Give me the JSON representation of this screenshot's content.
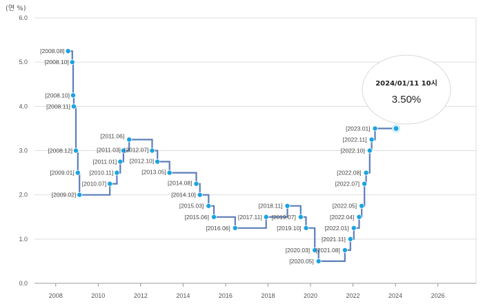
{
  "chart_data": {
    "type": "line",
    "step": "after",
    "unit_label": "(연 %)",
    "xlim": [
      2007,
      2027.8
    ],
    "ylim": [
      0.0,
      6.0
    ],
    "y_ticks": [
      "0.0",
      "1.0",
      "2.0",
      "3.0",
      "4.0",
      "5.0",
      "6.0"
    ],
    "x_ticks": [
      "2008",
      "2010",
      "2012",
      "2014",
      "2016",
      "2018",
      "2020",
      "2022",
      "2024",
      "2026"
    ],
    "grid": true,
    "colors": {
      "line": "#5b7db8",
      "point": "#1aa3e0",
      "grid": "#dddddd",
      "axis": "#999999"
    },
    "series": [
      {
        "values": [
          {
            "x": 2008.58,
            "y": 5.25,
            "label": "[2008.08]"
          },
          {
            "x": 2008.78,
            "y": 5.0,
            "label": "[2008.10]"
          },
          {
            "x": 2008.82,
            "y": 4.25,
            "label": "[2008.10]"
          },
          {
            "x": 2008.85,
            "y": 4.0,
            "label": "[2008.11]"
          },
          {
            "x": 2008.95,
            "y": 3.0,
            "label": "[2008.12]"
          },
          {
            "x": 2009.04,
            "y": 2.5,
            "label": "[2009.01]"
          },
          {
            "x": 2009.12,
            "y": 2.0,
            "label": "[2009.02]"
          },
          {
            "x": 2010.55,
            "y": 2.25,
            "label": "[2010.07]"
          },
          {
            "x": 2010.88,
            "y": 2.5,
            "label": "[2010.11]"
          },
          {
            "x": 2011.04,
            "y": 2.75,
            "label": "[2011.01]"
          },
          {
            "x": 2011.19,
            "y": 3.0,
            "label": "[2011.03]"
          },
          {
            "x": 2011.46,
            "y": 3.25,
            "label": "[2011.06]"
          },
          {
            "x": 2012.54,
            "y": 3.0,
            "label": "[2012.07]"
          },
          {
            "x": 2012.79,
            "y": 2.75,
            "label": "[2012.10]"
          },
          {
            "x": 2013.36,
            "y": 2.5,
            "label": "[2013.05]"
          },
          {
            "x": 2014.62,
            "y": 2.25,
            "label": "[2014.08]"
          },
          {
            "x": 2014.79,
            "y": 2.0,
            "label": "[2014.10]"
          },
          {
            "x": 2015.2,
            "y": 1.75,
            "label": "[2015.03]"
          },
          {
            "x": 2015.45,
            "y": 1.5,
            "label": "[2015.06]"
          },
          {
            "x": 2016.45,
            "y": 1.25,
            "label": "[2016.06]"
          },
          {
            "x": 2017.91,
            "y": 1.5,
            "label": "[2017.11]"
          },
          {
            "x": 2018.91,
            "y": 1.75,
            "label": "[2018.11]"
          },
          {
            "x": 2019.54,
            "y": 1.5,
            "label": "[2019.07]"
          },
          {
            "x": 2019.79,
            "y": 1.25,
            "label": "[2019.10]"
          },
          {
            "x": 2020.2,
            "y": 0.75,
            "label": "[2020.03]"
          },
          {
            "x": 2020.38,
            "y": 0.5,
            "label": "[2020.05]"
          },
          {
            "x": 2021.62,
            "y": 0.75,
            "label": "[2021.08]"
          },
          {
            "x": 2021.88,
            "y": 1.0,
            "label": "[2021.11]"
          },
          {
            "x": 2022.04,
            "y": 1.25,
            "label": "[2022.01]"
          },
          {
            "x": 2022.29,
            "y": 1.5,
            "label": "[2022.04]"
          },
          {
            "x": 2022.41,
            "y": 1.75,
            "label": "[2022.05]"
          },
          {
            "x": 2022.54,
            "y": 2.25,
            "label": "[2022.07]"
          },
          {
            "x": 2022.62,
            "y": 2.5,
            "label": "[2022.08]"
          },
          {
            "x": 2022.79,
            "y": 3.0,
            "label": "[2022.10]"
          },
          {
            "x": 2022.88,
            "y": 3.25,
            "label": "[2022.11]"
          },
          {
            "x": 2023.04,
            "y": 3.5,
            "label": "[2023.01]"
          }
        ]
      }
    ],
    "end_point": {
      "x": 2024.03,
      "y": 3.5
    },
    "tooltip": {
      "date": "2024/01/11 10시",
      "value": "3.50%"
    }
  }
}
